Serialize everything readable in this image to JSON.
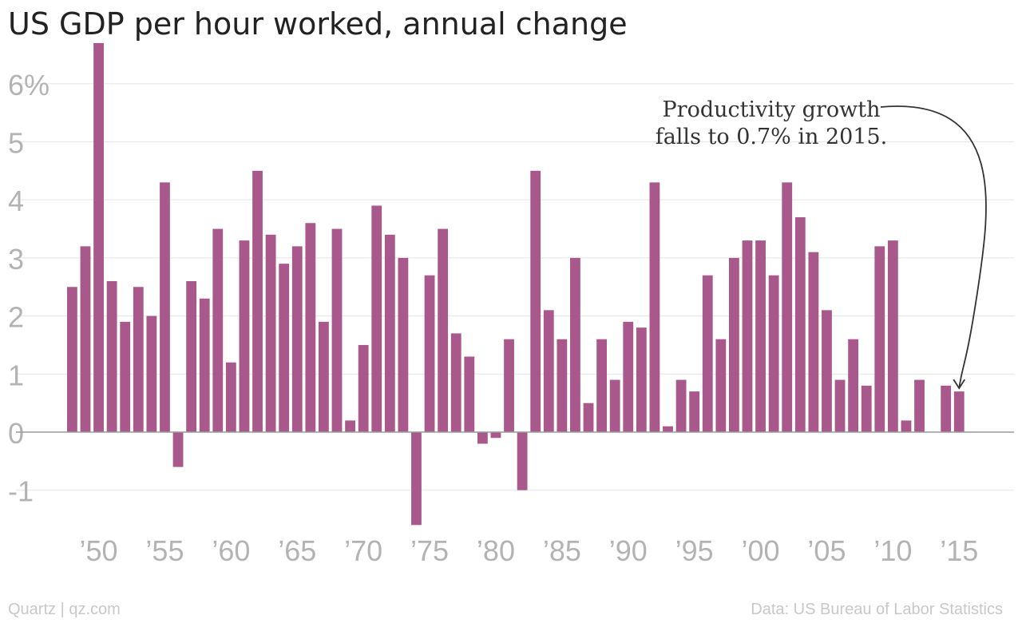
{
  "title": "US GDP per hour worked, annual change",
  "footer": {
    "credit": "Quartz | qz.com",
    "source": "Data: US Bureau of Labor Statistics"
  },
  "colors": {
    "bar": "#a8588a",
    "grid": "#e8e8e8",
    "axis_text": "#b3b3b3",
    "annotation_text": "#333333"
  },
  "chart_data": {
    "type": "bar",
    "title": "US GDP per hour worked, annual change",
    "xlabel": "",
    "ylabel": "",
    "ylim": [
      -1.8,
      6.8
    ],
    "grid": true,
    "y_ticks": [
      {
        "value": 6,
        "label": "6%"
      },
      {
        "value": 5,
        "label": "5"
      },
      {
        "value": 4,
        "label": "4"
      },
      {
        "value": 3,
        "label": "3"
      },
      {
        "value": 2,
        "label": "2"
      },
      {
        "value": 1,
        "label": "1"
      },
      {
        "value": 0,
        "label": "0"
      },
      {
        "value": -1,
        "label": "-1"
      }
    ],
    "x_ticks": [
      {
        "year": 1950,
        "label": "’50"
      },
      {
        "year": 1955,
        "label": "’55"
      },
      {
        "year": 1960,
        "label": "’60"
      },
      {
        "year": 1965,
        "label": "’65"
      },
      {
        "year": 1970,
        "label": "’70"
      },
      {
        "year": 1975,
        "label": "’75"
      },
      {
        "year": 1980,
        "label": "’80"
      },
      {
        "year": 1985,
        "label": "’85"
      },
      {
        "year": 1990,
        "label": "’90"
      },
      {
        "year": 1995,
        "label": "’95"
      },
      {
        "year": 2000,
        "label": "’00"
      },
      {
        "year": 2005,
        "label": "’05"
      },
      {
        "year": 2010,
        "label": "’10"
      },
      {
        "year": 2015,
        "label": "’15"
      }
    ],
    "x": [
      1948,
      1949,
      1950,
      1951,
      1952,
      1953,
      1954,
      1955,
      1956,
      1957,
      1958,
      1959,
      1960,
      1961,
      1962,
      1963,
      1964,
      1965,
      1966,
      1967,
      1968,
      1969,
      1970,
      1971,
      1972,
      1973,
      1974,
      1975,
      1976,
      1977,
      1978,
      1979,
      1980,
      1981,
      1982,
      1983,
      1984,
      1985,
      1986,
      1987,
      1988,
      1989,
      1990,
      1991,
      1992,
      1993,
      1994,
      1995,
      1996,
      1997,
      1998,
      1999,
      2000,
      2001,
      2002,
      2003,
      2004,
      2005,
      2006,
      2007,
      2008,
      2009,
      2010,
      2011,
      2012,
      2013,
      2014,
      2015
    ],
    "values": [
      2.5,
      3.2,
      6.7,
      2.6,
      1.9,
      2.5,
      2.0,
      4.3,
      -0.6,
      2.6,
      2.3,
      3.5,
      1.2,
      3.3,
      4.5,
      3.4,
      2.9,
      3.2,
      3.6,
      1.9,
      3.5,
      0.2,
      1.5,
      3.9,
      3.4,
      3.0,
      -1.6,
      2.7,
      3.5,
      1.7,
      1.3,
      -0.2,
      -0.1,
      1.6,
      -1.0,
      4.5,
      2.1,
      1.6,
      3.0,
      0.5,
      1.6,
      0.9,
      1.9,
      1.8,
      4.3,
      0.1,
      0.9,
      0.7,
      2.7,
      1.6,
      3.0,
      3.3,
      3.3,
      2.7,
      4.3,
      3.7,
      3.1,
      2.1,
      0.9,
      1.6,
      0.8,
      3.2,
      3.3,
      0.2,
      0.9,
      0.0,
      0.8,
      0.7
    ],
    "annotation": {
      "lines": [
        "Productivity growth",
        "falls to 0.7% in 2015."
      ],
      "target_year": 2015,
      "target_value": 0.7
    }
  }
}
